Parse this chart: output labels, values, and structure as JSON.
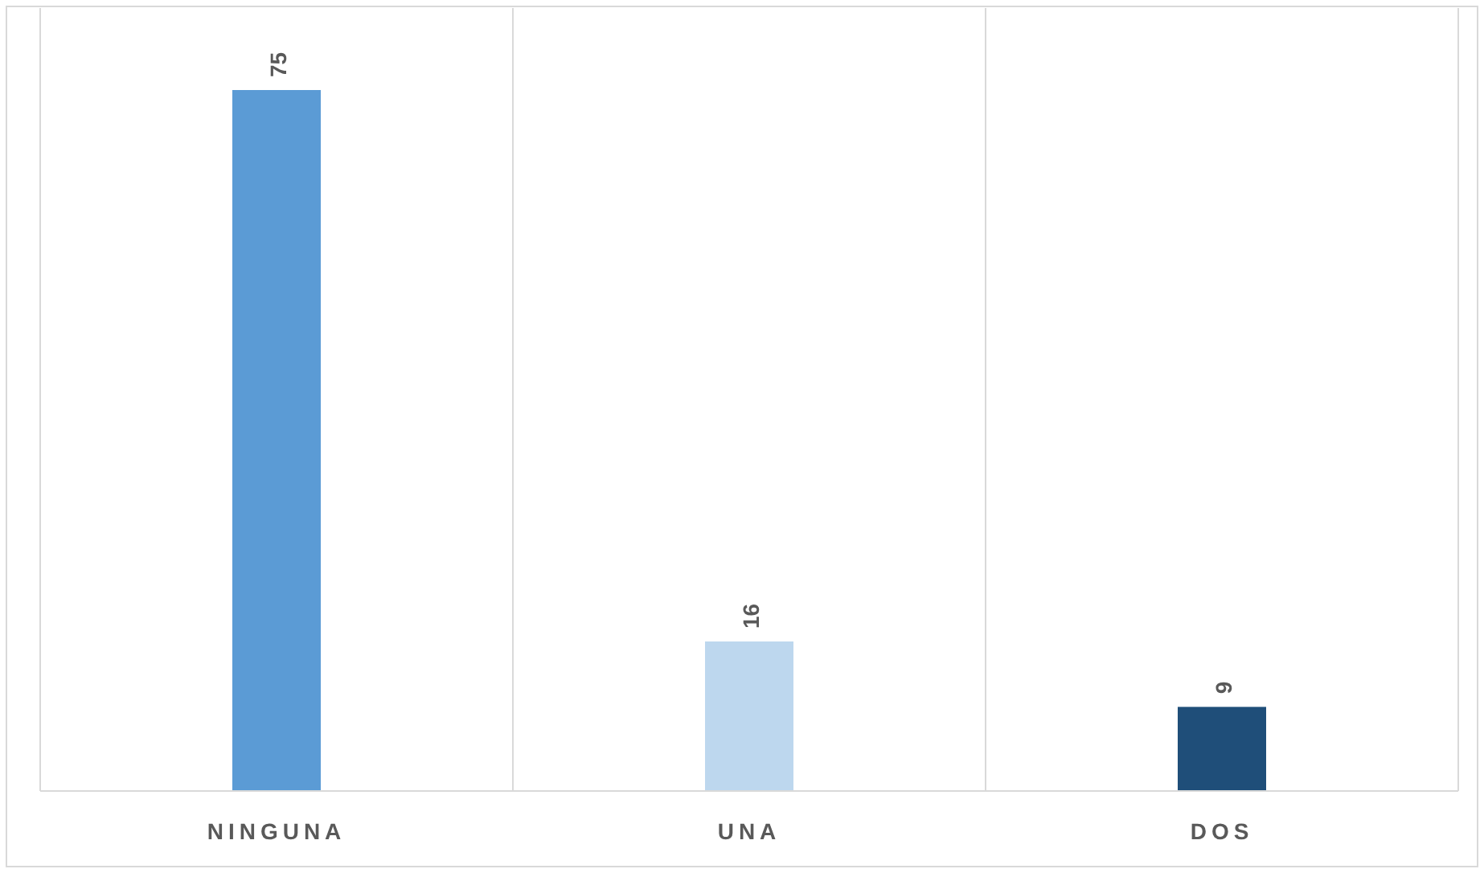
{
  "chart_data": {
    "type": "bar",
    "categories": [
      "NINGUNA",
      "UNA",
      "DOS"
    ],
    "values": [
      75,
      16,
      9
    ],
    "colors": [
      "#5b9bd5",
      "#bdd7ee",
      "#1f4e79"
    ],
    "data_labels": true,
    "grid": "x"
  }
}
